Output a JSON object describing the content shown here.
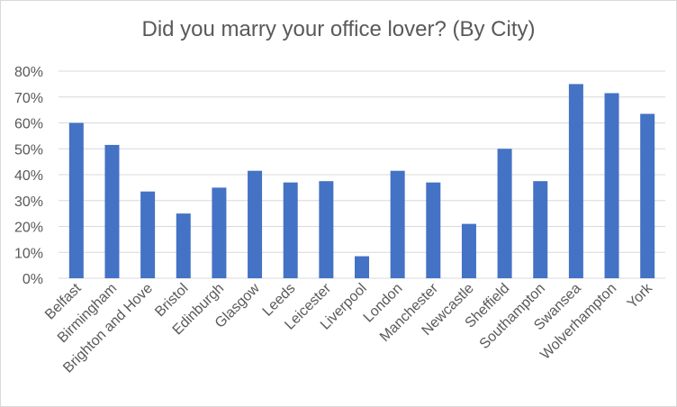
{
  "chart_data": {
    "type": "bar",
    "title": "Did you marry your office lover? (By City)",
    "xlabel": "",
    "ylabel": "",
    "categories": [
      "Belfast",
      "Birmingham",
      "Brighton and Hove",
      "Bristol",
      "Edinburgh",
      "Glasgow",
      "Leeds",
      "Leicester",
      "Liverpool",
      "London",
      "Manchester",
      "Newcastle",
      "Sheffield",
      "Southampton",
      "Swansea",
      "Wolverhampton",
      "York"
    ],
    "values": [
      60,
      51.5,
      33.5,
      25,
      35,
      41.5,
      37,
      37.5,
      8.5,
      41.5,
      37,
      21,
      50,
      37.5,
      75,
      71.5,
      63.5
    ],
    "ylim": [
      0,
      80
    ],
    "yticks": [
      "0%",
      "10%",
      "20%",
      "30%",
      "40%",
      "50%",
      "60%",
      "70%",
      "80%"
    ],
    "grid": true,
    "bar_color": "#4472c4",
    "grid_color": "#d9d9d9"
  }
}
